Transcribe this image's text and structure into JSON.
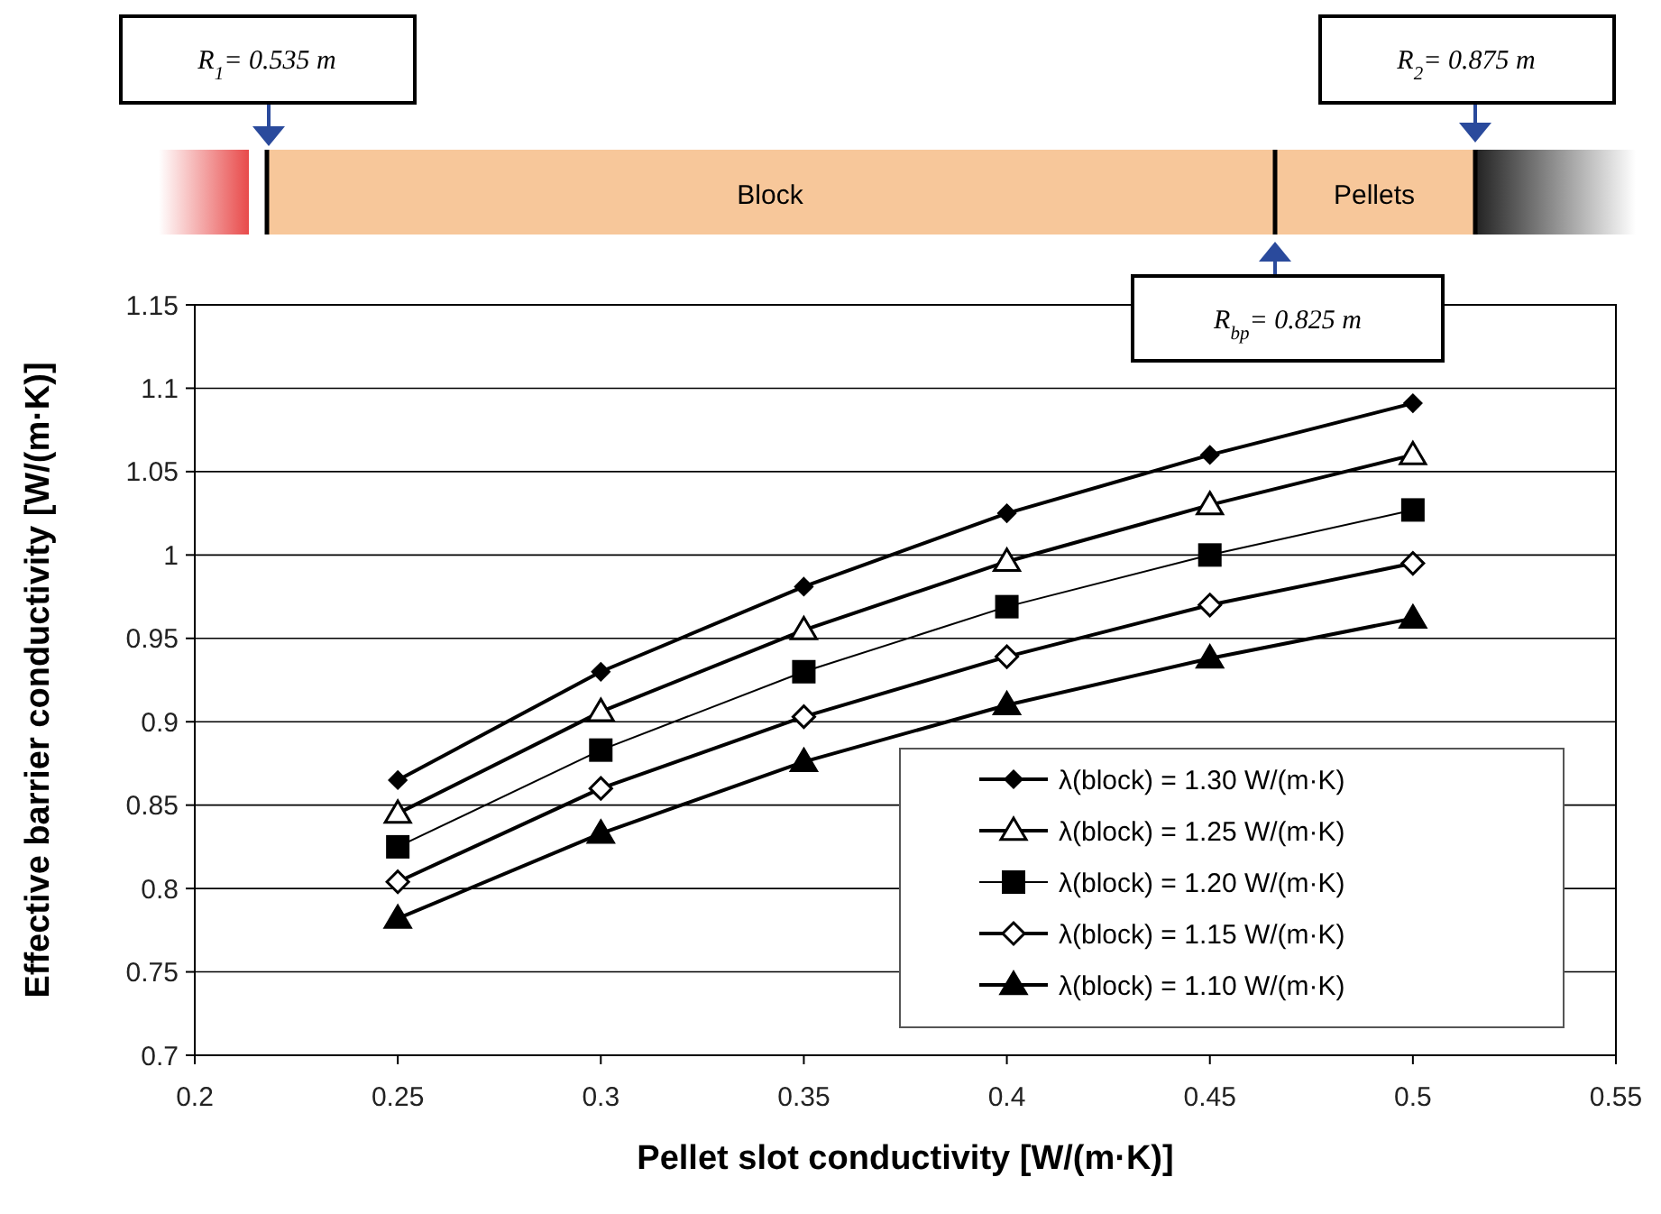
{
  "chart_data": {
    "type": "line",
    "xlabel": "Pellet slot conductivity [W/(m·K)]",
    "ylabel": "Effective barrier conductivity [W/(m·K)]",
    "x": [
      0.25,
      0.3,
      0.35,
      0.4,
      0.45,
      0.5
    ],
    "xlim": [
      0.2,
      0.55
    ],
    "xticks": [
      0.2,
      0.25,
      0.3,
      0.35,
      0.4,
      0.45,
      0.5,
      0.55
    ],
    "ylim": [
      0.7,
      1.15
    ],
    "yticks": [
      0.7,
      0.75,
      0.8,
      0.85,
      0.9,
      0.95,
      1,
      1.05,
      1.1,
      1.15
    ],
    "grid": "y",
    "legend": "bottom right",
    "line_style": "solid",
    "series": [
      {
        "name": "λ(block) = 1.30 W/(m·K)",
        "color": "#000000",
        "marker": "diamond",
        "values": [
          0.865,
          0.93,
          0.981,
          1.025,
          1.06,
          1.091
        ]
      },
      {
        "name": "λ(block) = 1.25 W/(m·K)",
        "color": "#000000",
        "marker": "triangle",
        "values": [
          0.845,
          0.906,
          0.955,
          0.996,
          1.03,
          1.06
        ]
      },
      {
        "name": "λ(block) = 1.20 W/(m·K)",
        "color": "#000000",
        "marker": "square",
        "values": [
          0.825,
          0.883,
          0.93,
          0.969,
          1.0,
          1.027
        ]
      },
      {
        "name": "λ(block) = 1.15 W/(m·K)",
        "color": "#000000",
        "marker": "diamond",
        "values": [
          0.804,
          0.86,
          0.903,
          0.939,
          0.97,
          0.995
        ]
      },
      {
        "name": "λ(block) = 1.10 W/(m·K)",
        "color": "#000000",
        "marker": "triangle",
        "values": [
          0.782,
          0.833,
          0.876,
          0.91,
          0.938,
          0.962
        ]
      }
    ],
    "annotations": [
      "R$_{1}$= 0.535 m",
      "R$_{2}$= 0.875 m",
      "R$_{bp}$= 0.825 m",
      "Block",
      "Pellets"
    ]
  }
}
